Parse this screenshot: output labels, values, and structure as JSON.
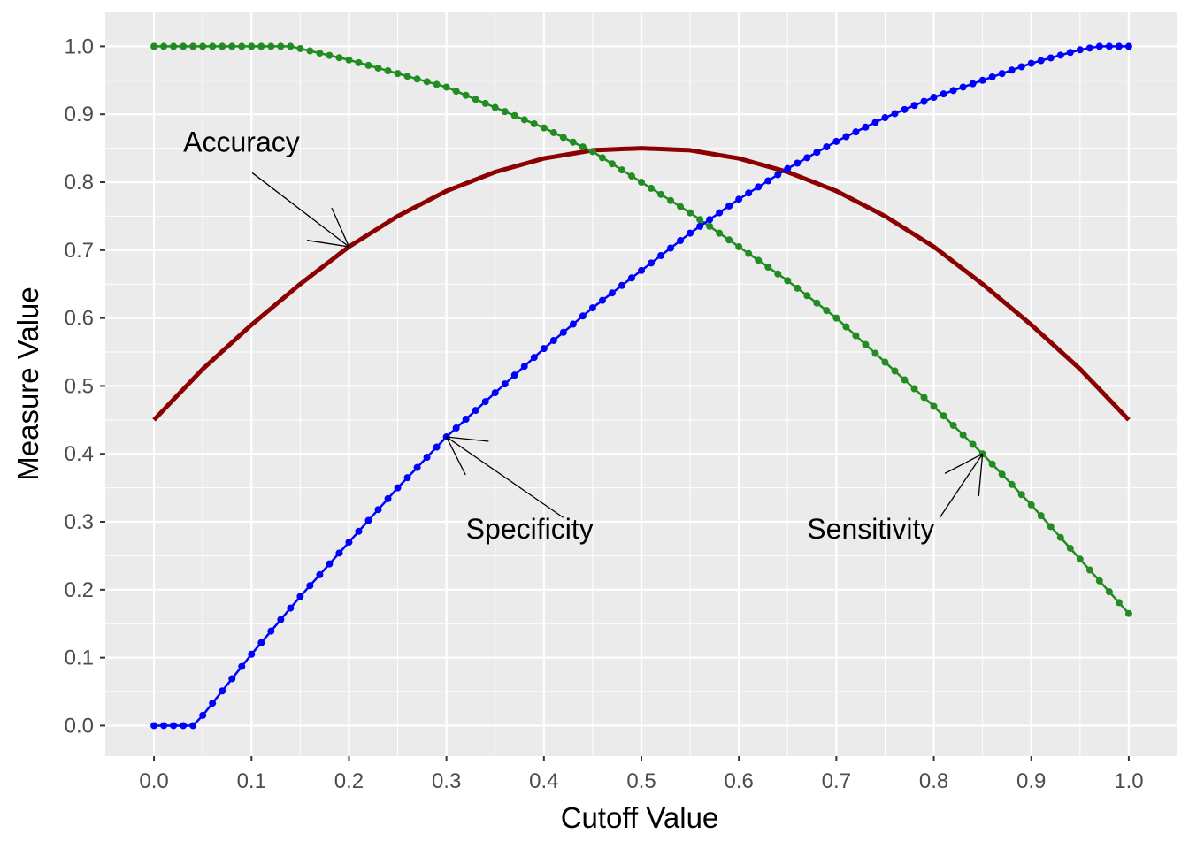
{
  "chart_data": {
    "type": "line",
    "xlabel": "Cutoff Value",
    "ylabel": "Measure Value",
    "xlim": [
      -0.05,
      1.05
    ],
    "ylim": [
      -0.045,
      1.05
    ],
    "grid": true,
    "legend": "none",
    "x_ticks": [
      "0.0",
      "0.1",
      "0.2",
      "0.3",
      "0.4",
      "0.5",
      "0.6",
      "0.7",
      "0.8",
      "0.9",
      "1.0"
    ],
    "y_ticks": [
      "0.0",
      "0.1",
      "0.2",
      "0.3",
      "0.4",
      "0.5",
      "0.6",
      "0.7",
      "0.8",
      "0.9",
      "1.0"
    ],
    "series": [
      {
        "key": "accuracy",
        "color": "#8B0000",
        "style": "line",
        "x": [
          0.0,
          0.05,
          0.1,
          0.15,
          0.2,
          0.25,
          0.3,
          0.35,
          0.4,
          0.45,
          0.5,
          0.55,
          0.6,
          0.65,
          0.7,
          0.75,
          0.8,
          0.85,
          0.9,
          0.95,
          1.0
        ],
        "values": [
          0.45,
          0.525,
          0.59,
          0.65,
          0.705,
          0.75,
          0.787,
          0.815,
          0.835,
          0.847,
          0.85,
          0.847,
          0.835,
          0.815,
          0.787,
          0.75,
          0.705,
          0.65,
          0.59,
          0.525,
          0.45
        ]
      },
      {
        "key": "sensitivity",
        "color": "#228B22",
        "style": "line+points",
        "x": [
          0.0,
          0.05,
          0.1,
          0.14,
          0.2,
          0.25,
          0.3,
          0.35,
          0.4,
          0.45,
          0.5,
          0.55,
          0.6,
          0.65,
          0.7,
          0.75,
          0.8,
          0.85,
          0.9,
          0.95,
          1.0
        ],
        "values": [
          1.0,
          1.0,
          1.0,
          1.0,
          0.98,
          0.96,
          0.94,
          0.91,
          0.88,
          0.845,
          0.8,
          0.755,
          0.705,
          0.655,
          0.6,
          0.535,
          0.47,
          0.4,
          0.325,
          0.245,
          0.165
        ]
      },
      {
        "key": "specificity",
        "color": "#0000FF",
        "style": "line+points",
        "x": [
          0.0,
          0.04,
          0.05,
          0.1,
          0.15,
          0.2,
          0.25,
          0.3,
          0.35,
          0.4,
          0.45,
          0.5,
          0.55,
          0.6,
          0.65,
          0.7,
          0.75,
          0.8,
          0.85,
          0.9,
          0.95,
          0.97,
          1.0
        ],
        "values": [
          0.0,
          0.0,
          0.015,
          0.105,
          0.19,
          0.27,
          0.35,
          0.425,
          0.49,
          0.555,
          0.615,
          0.67,
          0.725,
          0.775,
          0.82,
          0.86,
          0.895,
          0.925,
          0.95,
          0.975,
          0.995,
          1.0,
          1.0
        ]
      }
    ],
    "annotations": [
      {
        "key": "accuracy",
        "text": "Accuracy",
        "text_x": 0.03,
        "text_y": 0.845,
        "point_x": 0.2,
        "point_y": 0.705
      },
      {
        "key": "specificity",
        "text": "Specificity",
        "text_x": 0.32,
        "text_y": 0.275,
        "point_x": 0.3,
        "point_y": 0.425
      },
      {
        "key": "sensitivity",
        "text": "Sensitivity",
        "text_x": 0.67,
        "text_y": 0.275,
        "point_x": 0.85,
        "point_y": 0.4
      }
    ]
  }
}
